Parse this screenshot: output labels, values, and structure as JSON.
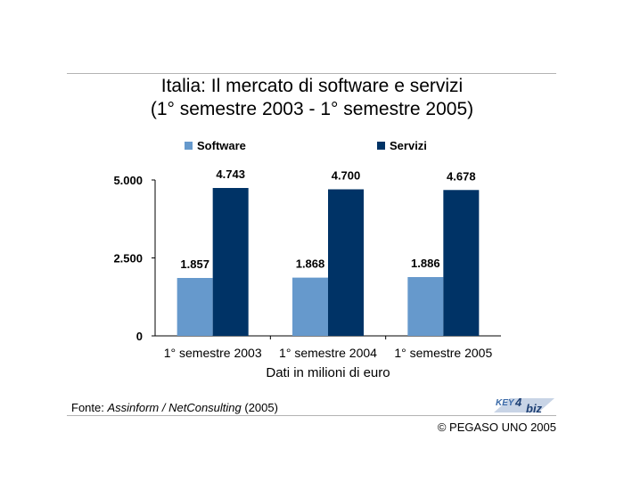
{
  "title_line1": "Italia: Il mercato di software e servizi",
  "title_line2": "(1° semestre 2003 - 1° semestre 2005)",
  "source": {
    "prefix": "Fonte: ",
    "italic": "Assinform / NetConsulting",
    "suffix": " (2005)"
  },
  "logo_text": "KEY4biz",
  "copyright": "© PEGASO UNO 2005",
  "chart_data": {
    "type": "bar",
    "categories": [
      "1° semestre 2003",
      "1° semestre 2004",
      "1° semestre 2005"
    ],
    "series": [
      {
        "name": "Software",
        "values": [
          1857,
          1868,
          1886
        ],
        "labels": [
          "1.857",
          "1.868",
          "1.886"
        ],
        "color": "#6699cc"
      },
      {
        "name": "Servizi",
        "values": [
          4743,
          4700,
          4678
        ],
        "labels": [
          "4.743",
          "4.700",
          "4.678"
        ],
        "color": "#003366"
      }
    ],
    "xlabel": "Dati in milioni di euro",
    "ylabel": "",
    "ylim": [
      0,
      5000
    ],
    "yticks": [
      0,
      2500,
      5000
    ],
    "ytick_labels": [
      "0",
      "2.500",
      "5.000"
    ],
    "grid": false,
    "legend_position": "top"
  }
}
